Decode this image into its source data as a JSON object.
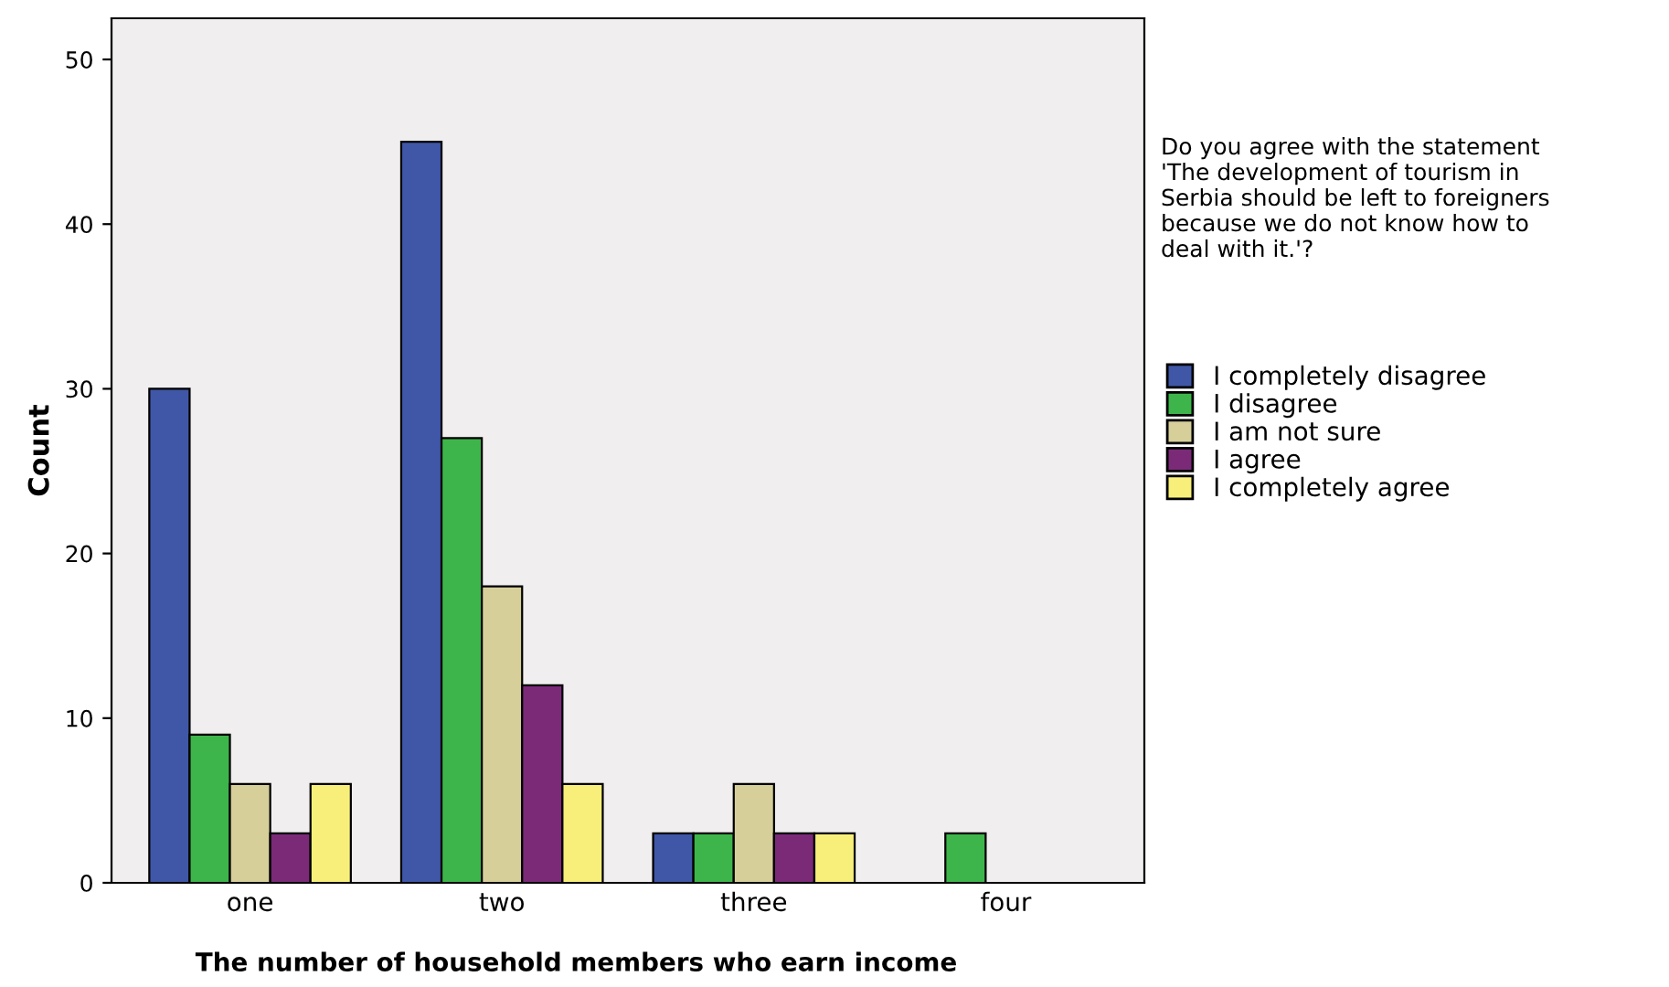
{
  "chart_data": {
    "type": "bar",
    "xlabel": "The number of household members who earn income",
    "ylabel": "Count",
    "legend_title": "Do you agree with the statement\n'The development of tourism in\nSerbia should be left to foreigners\nbecause we do not know how to\ndeal with it.'?",
    "categories": [
      "one",
      "two",
      "three",
      "four"
    ],
    "series": [
      {
        "name": "I completely disagree",
        "color": "#3f57a6",
        "values": [
          30,
          45,
          3,
          null
        ]
      },
      {
        "name": "I disagree",
        "color": "#3db54a",
        "values": [
          9,
          27,
          3,
          3
        ]
      },
      {
        "name": "I am not sure",
        "color": "#d6cf9a",
        "values": [
          6,
          18,
          6,
          null
        ]
      },
      {
        "name": "I agree",
        "color": "#7b2a78",
        "values": [
          3,
          12,
          3,
          null
        ]
      },
      {
        "name": "I completely agree",
        "color": "#f7ef7a",
        "values": [
          6,
          6,
          3,
          null
        ]
      }
    ],
    "ylim": [
      0,
      52.5
    ],
    "yticks": [
      0,
      10,
      20,
      30,
      40,
      50
    ],
    "grid": false,
    "legend": "right"
  }
}
